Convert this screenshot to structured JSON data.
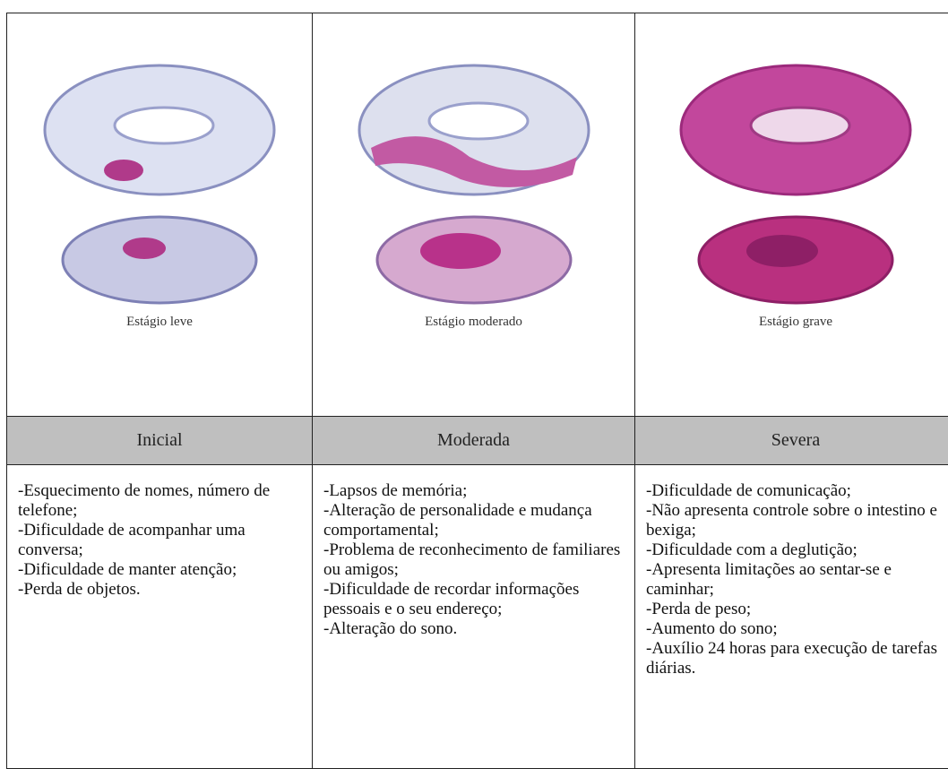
{
  "table": {
    "columns": [
      {
        "image_caption": "Estágio leve",
        "stage": "Inicial",
        "items": [
          "-Esquecimento de nomes, número de telefone;",
          "-Dificuldade de acompanhar uma conversa;",
          "-Dificuldade de manter atenção;",
          "-Perda de objetos."
        ]
      },
      {
        "image_caption": "Estágio moderado",
        "stage": "Moderada",
        "items": [
          "-Lapsos de memória;",
          "-Alteração de personalidade e mudança comportamental;",
          "-Problema de reconhecimento de familiares ou amigos;",
          "-Dificuldade de recordar informações pessoais e o seu endereço;",
          "-Alteração do sono."
        ]
      },
      {
        "image_caption": "Estágio grave",
        "stage": "Severa",
        "items": [
          "-Dificuldade de comunicação;",
          "-Não apresenta controle sobre o intestino e bexiga;",
          "-Dificuldade com a deglutição;",
          "-Apresenta limitações ao sentar-se e caminhar;",
          "-Perda de peso;",
          "-Aumento do sono;",
          "-Auxílio 24 horas para execução de tarefas diárias."
        ]
      }
    ]
  }
}
